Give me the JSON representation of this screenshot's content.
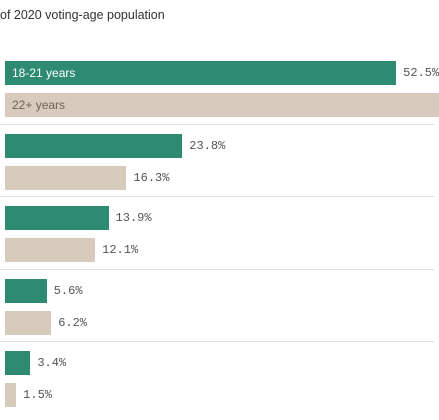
{
  "subtitle": "of 2020 voting-age population",
  "colors": {
    "young": "#2e8b72",
    "older": "#d6cbbd"
  },
  "chart_data": {
    "type": "bar",
    "orientation": "horizontal",
    "title": "of 2020 voting-age population",
    "groups": [
      {
        "young": 52.5,
        "older": null,
        "young_label": "52.5%",
        "older_label": ""
      },
      {
        "young": 23.8,
        "older": 16.3,
        "young_label": "23.8%",
        "older_label": "16.3%"
      },
      {
        "young": 13.9,
        "older": 12.1,
        "young_label": "13.9%",
        "older_label": "12.1%"
      },
      {
        "young": 5.6,
        "older": 6.2,
        "young_label": "5.6%",
        "older_label": "6.2%"
      },
      {
        "young": 3.4,
        "older": 1.5,
        "young_label": "3.4%",
        "older_label": "1.5%"
      }
    ],
    "series": [
      {
        "name": "18-21 years",
        "key": "young"
      },
      {
        "name": "22+ years",
        "key": "older"
      }
    ]
  }
}
